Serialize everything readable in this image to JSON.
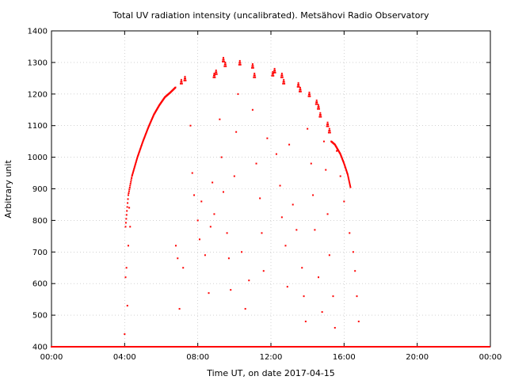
{
  "chart_data": {
    "type": "scatter",
    "title": "Total UV radiation intensity (uncalibrated). Metsähovi Radio Observatory",
    "xlabel": "Time UT, on date 2017-04-15",
    "ylabel": "Arbitrary unit",
    "xlim": [
      0,
      24
    ],
    "ylim": [
      400,
      1400
    ],
    "xticks": [
      0,
      4,
      8,
      12,
      16,
      20,
      24
    ],
    "xtick_labels": [
      "00:00",
      "04:00",
      "08:00",
      "12:00",
      "16:00",
      "20:00",
      "00:00"
    ],
    "yticks": [
      400,
      500,
      600,
      700,
      800,
      900,
      1000,
      1100,
      1200,
      1300,
      1400
    ],
    "ytick_labels": [
      "400",
      "500",
      "600",
      "700",
      "800",
      "900",
      "1000",
      "1100",
      "1200",
      "1300",
      "1400"
    ],
    "grid": true,
    "series_color": "#ff0000",
    "clear_envelope": [
      [
        4.05,
        780
      ],
      [
        4.2,
        880
      ],
      [
        4.4,
        940
      ],
      [
        4.7,
        1000
      ],
      [
        5.0,
        1050
      ],
      [
        5.3,
        1095
      ],
      [
        5.6,
        1135
      ],
      [
        5.9,
        1165
      ],
      [
        6.2,
        1190
      ],
      [
        6.5,
        1205
      ],
      [
        6.8,
        1222
      ],
      [
        15.3,
        1050
      ],
      [
        15.5,
        1040
      ],
      [
        15.8,
        1010
      ],
      [
        16.0,
        980
      ],
      [
        16.2,
        945
      ],
      [
        16.35,
        905
      ]
    ],
    "peaks": [
      [
        7.1,
        1245
      ],
      [
        7.3,
        1255
      ],
      [
        8.9,
        1265
      ],
      [
        9.0,
        1275
      ],
      [
        9.4,
        1315
      ],
      [
        9.5,
        1300
      ],
      [
        10.3,
        1305
      ],
      [
        11.0,
        1295
      ],
      [
        11.1,
        1265
      ],
      [
        12.1,
        1270
      ],
      [
        12.2,
        1280
      ],
      [
        12.6,
        1265
      ],
      [
        12.7,
        1245
      ],
      [
        13.5,
        1235
      ],
      [
        13.6,
        1220
      ],
      [
        14.1,
        1205
      ],
      [
        14.5,
        1180
      ],
      [
        14.6,
        1165
      ],
      [
        14.7,
        1140
      ],
      [
        15.1,
        1110
      ],
      [
        15.2,
        1090
      ]
    ],
    "scattered": [
      [
        4.0,
        440
      ],
      [
        4.05,
        620
      ],
      [
        4.1,
        650
      ],
      [
        4.15,
        530
      ],
      [
        4.2,
        720
      ],
      [
        4.25,
        840
      ],
      [
        4.3,
        780
      ],
      [
        6.8,
        720
      ],
      [
        6.9,
        680
      ],
      [
        7.0,
        520
      ],
      [
        7.2,
        650
      ],
      [
        7.6,
        1100
      ],
      [
        7.7,
        950
      ],
      [
        7.8,
        880
      ],
      [
        8.0,
        800
      ],
      [
        8.1,
        740
      ],
      [
        8.2,
        860
      ],
      [
        8.4,
        690
      ],
      [
        8.6,
        570
      ],
      [
        8.7,
        780
      ],
      [
        8.8,
        920
      ],
      [
        8.9,
        820
      ],
      [
        9.2,
        1120
      ],
      [
        9.3,
        1000
      ],
      [
        9.4,
        890
      ],
      [
        9.6,
        760
      ],
      [
        9.7,
        680
      ],
      [
        9.8,
        580
      ],
      [
        10.0,
        940
      ],
      [
        10.1,
        1080
      ],
      [
        10.2,
        1200
      ],
      [
        10.4,
        700
      ],
      [
        10.6,
        520
      ],
      [
        10.8,
        610
      ],
      [
        11.0,
        1150
      ],
      [
        11.2,
        980
      ],
      [
        11.4,
        870
      ],
      [
        11.5,
        760
      ],
      [
        11.6,
        640
      ],
      [
        11.8,
        1060
      ],
      [
        12.3,
        1010
      ],
      [
        12.5,
        910
      ],
      [
        12.6,
        810
      ],
      [
        12.8,
        720
      ],
      [
        12.9,
        590
      ],
      [
        13.0,
        1040
      ],
      [
        13.2,
        850
      ],
      [
        13.4,
        770
      ],
      [
        13.7,
        650
      ],
      [
        13.8,
        560
      ],
      [
        13.9,
        480
      ],
      [
        14.0,
        1090
      ],
      [
        14.2,
        980
      ],
      [
        14.3,
        880
      ],
      [
        14.4,
        770
      ],
      [
        14.6,
        620
      ],
      [
        14.8,
        510
      ],
      [
        14.9,
        1050
      ],
      [
        15.0,
        960
      ],
      [
        15.1,
        820
      ],
      [
        15.2,
        690
      ],
      [
        15.4,
        560
      ],
      [
        15.5,
        460
      ],
      [
        15.6,
        1020
      ],
      [
        15.8,
        940
      ],
      [
        16.0,
        860
      ],
      [
        16.3,
        760
      ],
      [
        16.5,
        700
      ],
      [
        16.6,
        640
      ],
      [
        16.7,
        560
      ],
      [
        16.8,
        480
      ]
    ],
    "baseline_value": 400,
    "baseline_range": [
      0,
      24
    ]
  }
}
